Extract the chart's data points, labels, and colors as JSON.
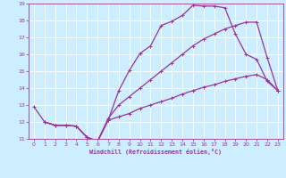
{
  "xlabel": "Windchill (Refroidissement éolien,°C)",
  "bg_color": "#cceeff",
  "grid_color": "#ffffff",
  "line_color": "#993399",
  "xlim": [
    -0.5,
    23.5
  ],
  "ylim": [
    11,
    19
  ],
  "xticks": [
    0,
    1,
    2,
    3,
    4,
    5,
    6,
    7,
    8,
    9,
    10,
    11,
    12,
    13,
    14,
    15,
    16,
    17,
    18,
    19,
    20,
    21,
    22,
    23
  ],
  "yticks": [
    11,
    12,
    13,
    14,
    15,
    16,
    17,
    18,
    19
  ],
  "line1_x": [
    0,
    1,
    2,
    3,
    4,
    5,
    6,
    7,
    8,
    9,
    10,
    11,
    12,
    13,
    14,
    15,
    16,
    17,
    18,
    19,
    20,
    21,
    22,
    23
  ],
  "line1_y": [
    12.9,
    12.0,
    11.8,
    11.8,
    11.75,
    11.1,
    10.85,
    12.1,
    13.85,
    15.05,
    16.05,
    16.5,
    17.7,
    17.95,
    18.3,
    18.9,
    18.85,
    18.85,
    18.75,
    17.2,
    16.0,
    15.7,
    14.4,
    13.85
  ],
  "line2_x": [
    1,
    2,
    3,
    4,
    5,
    6,
    7,
    8,
    9,
    10,
    11,
    12,
    13,
    14,
    15,
    16,
    17,
    18,
    19,
    20,
    21,
    22,
    23
  ],
  "line2_y": [
    12.0,
    11.8,
    11.8,
    11.75,
    11.1,
    10.85,
    12.2,
    13.0,
    13.5,
    14.0,
    14.5,
    15.0,
    15.5,
    16.0,
    16.5,
    16.9,
    17.2,
    17.5,
    17.7,
    17.9,
    17.9,
    15.8,
    13.85
  ],
  "line3_x": [
    1,
    2,
    3,
    4,
    5,
    6,
    7,
    8,
    9,
    10,
    11,
    12,
    13,
    14,
    15,
    16,
    17,
    18,
    19,
    20,
    21,
    22,
    23
  ],
  "line3_y": [
    12.0,
    11.8,
    11.8,
    11.75,
    11.1,
    10.85,
    12.1,
    12.3,
    12.5,
    12.8,
    13.0,
    13.2,
    13.4,
    13.65,
    13.85,
    14.05,
    14.2,
    14.4,
    14.55,
    14.7,
    14.8,
    14.5,
    13.85
  ]
}
